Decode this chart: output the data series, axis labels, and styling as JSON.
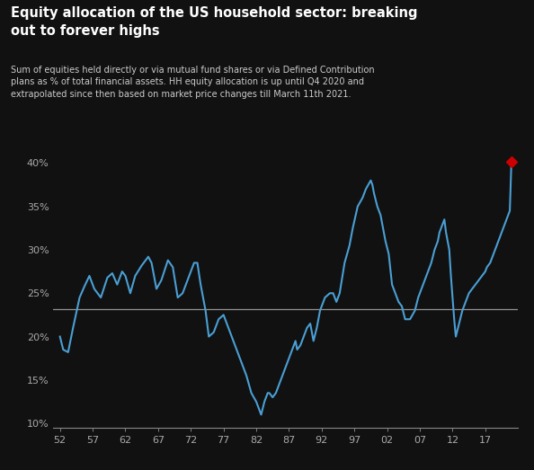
{
  "title": "Equity allocation of the US household sector: breaking\nout to forever highs",
  "subtitle": "Sum of equities held directly or via mutual fund shares or via Defined Contribution\nplans as % of total financial assets. HH equity allocation is up until Q4 2020 and\nextrapolated since then based on market price changes till March 11th 2021.",
  "background_color": "#111111",
  "title_bg": "#222222",
  "text_color": "#ffffff",
  "subtitle_color": "#cccccc",
  "line_color": "#4a9fd4",
  "ref_line_value": 23.2,
  "ref_line_color": "#aaaaaa",
  "marker_color": "#cc0000",
  "yticks": [
    10,
    15,
    20,
    25,
    30,
    35,
    40
  ],
  "xticks": [
    1952,
    1957,
    1962,
    1967,
    1972,
    1977,
    1982,
    1987,
    1992,
    1997,
    2002,
    2007,
    2012,
    2017
  ],
  "xlabels": [
    "52",
    "57",
    "62",
    "67",
    "72",
    "77",
    "82",
    "87",
    "92",
    "97",
    "02",
    "07",
    "12",
    "17"
  ],
  "ylim": [
    9.5,
    42
  ],
  "xlim": [
    1951,
    2022
  ],
  "marker_x": 2021.0,
  "marker_y": 40.2
}
